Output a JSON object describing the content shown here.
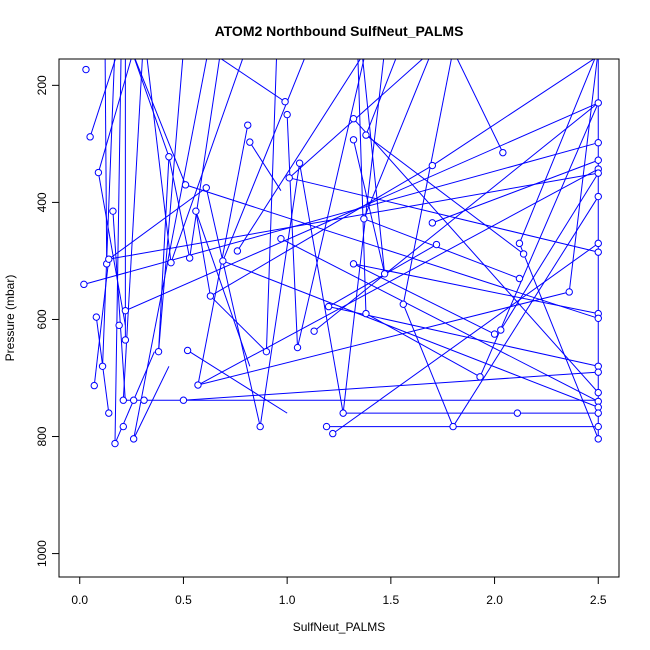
{
  "chart_data": {
    "type": "line",
    "title": "ATOM2 Northbound SulfNeut_PALMS",
    "xlabel": "SulfNeut_PALMS",
    "ylabel": "Pressure (mbar)",
    "xlim": [
      -0.1,
      2.6
    ],
    "ylim": [
      1040,
      155
    ],
    "y_reversed": true,
    "x_ticks": [
      0.0,
      0.5,
      1.0,
      1.5,
      2.0,
      2.5
    ],
    "x_tick_labels": [
      "0.0",
      "0.5",
      "1.0",
      "1.5",
      "2.0",
      "2.5"
    ],
    "y_ticks": [
      200,
      400,
      600,
      800,
      1000
    ],
    "y_tick_labels": [
      "200",
      "400",
      "600",
      "800",
      "1000"
    ],
    "grid": false,
    "legend": "none",
    "series": [
      {
        "color": "#0000ff",
        "marker": "open-circle",
        "points": [
          [
            0.03,
            173
          ],
          [
            0.12,
            40
          ],
          [
            0.05,
            288
          ],
          [
            0.25,
            70
          ],
          [
            0.09,
            349
          ],
          [
            0.13,
            505
          ],
          [
            0.16,
            415
          ],
          [
            0.14,
            497
          ],
          [
            0.02,
            540
          ],
          [
            0.08,
            596
          ],
          [
            0.11,
            680
          ],
          [
            0.07,
            713
          ],
          [
            0.14,
            760
          ],
          [
            0.2,
            140
          ],
          [
            0.22,
            585
          ],
          [
            0.22,
            635
          ],
          [
            0.19,
            610
          ],
          [
            0.21,
            738
          ],
          [
            0.17,
            812
          ],
          [
            0.26,
            738
          ],
          [
            0.21,
            783
          ],
          [
            0.26,
            804
          ],
          [
            0.31,
            738
          ],
          [
            0.38,
            655
          ],
          [
            0.43,
            322
          ],
          [
            0.44,
            503
          ],
          [
            0.5,
            738
          ],
          [
            0.51,
            370
          ],
          [
            0.53,
            495
          ],
          [
            0.52,
            653
          ],
          [
            0.56,
            415
          ],
          [
            0.57,
            712
          ],
          [
            0.61,
            375
          ],
          [
            0.63,
            560
          ],
          [
            0.69,
            500
          ],
          [
            0.76,
            483
          ],
          [
            0.81,
            268
          ],
          [
            0.82,
            297
          ],
          [
            0.87,
            783
          ],
          [
            0.9,
            655
          ],
          [
            0.97,
            462
          ],
          [
            0.99,
            228
          ],
          [
            1.0,
            250
          ],
          [
            1.01,
            358
          ],
          [
            1.06,
            333
          ],
          [
            1.05,
            648
          ],
          [
            1.13,
            620
          ],
          [
            1.19,
            783
          ],
          [
            1.2,
            578
          ],
          [
            1.22,
            795
          ],
          [
            1.27,
            760
          ],
          [
            1.32,
            257
          ],
          [
            1.32,
            505
          ],
          [
            1.32,
            293
          ],
          [
            1.37,
            428
          ],
          [
            1.38,
            285
          ],
          [
            1.38,
            590
          ],
          [
            1.47,
            522
          ],
          [
            1.56,
            574
          ],
          [
            1.7,
            337
          ],
          [
            1.7,
            435
          ],
          [
            1.72,
            472
          ],
          [
            1.8,
            783
          ],
          [
            1.93,
            698
          ],
          [
            2.0,
            625
          ],
          [
            2.03,
            618
          ],
          [
            2.04,
            315
          ],
          [
            2.11,
            760
          ],
          [
            2.12,
            470
          ],
          [
            2.12,
            530
          ],
          [
            2.14,
            488
          ],
          [
            2.36,
            553
          ],
          [
            2.5,
            230
          ],
          [
            2.5,
            298
          ],
          [
            2.5,
            328
          ],
          [
            2.5,
            343
          ],
          [
            2.5,
            350
          ],
          [
            2.5,
            390
          ],
          [
            2.5,
            470
          ],
          [
            2.5,
            485
          ],
          [
            2.5,
            590
          ],
          [
            2.5,
            598
          ],
          [
            2.5,
            680
          ],
          [
            2.5,
            690
          ],
          [
            2.5,
            725
          ],
          [
            2.5,
            740
          ],
          [
            2.5,
            750
          ],
          [
            2.5,
            760
          ],
          [
            2.5,
            783
          ],
          [
            2.5,
            804
          ]
        ],
        "segments": [
          [
            [
              0.09,
              349
            ],
            [
              0.26,
              140
            ]
          ],
          [
            [
              0.09,
              349
            ],
            [
              0.22,
              610
            ]
          ],
          [
            [
              0.05,
              288
            ],
            [
              0.25,
              70
            ]
          ],
          [
            [
              0.02,
              540
            ],
            [
              2.5,
              298
            ]
          ],
          [
            [
              0.14,
              497
            ],
            [
              2.5,
              350
            ]
          ],
          [
            [
              0.13,
              505
            ],
            [
              0.12,
              40
            ]
          ],
          [
            [
              0.16,
              415
            ],
            [
              0.22,
              740
            ]
          ],
          [
            [
              0.08,
              596
            ],
            [
              0.14,
              760
            ]
          ],
          [
            [
              0.11,
              680
            ],
            [
              0.18,
              40
            ]
          ],
          [
            [
              0.07,
              713
            ],
            [
              0.14,
              497
            ]
          ],
          [
            [
              0.14,
              497
            ],
            [
              0.61,
              375
            ]
          ],
          [
            [
              0.22,
              585
            ],
            [
              2.5,
              230
            ]
          ],
          [
            [
              0.22,
              635
            ],
            [
              0.22,
              40
            ]
          ],
          [
            [
              0.17,
              812
            ],
            [
              0.2,
              130
            ]
          ],
          [
            [
              0.21,
              738
            ],
            [
              0.32,
              40
            ]
          ],
          [
            [
              0.21,
              738
            ],
            [
              2.5,
              738
            ]
          ],
          [
            [
              0.26,
              804
            ],
            [
              0.43,
              680
            ]
          ],
          [
            [
              0.26,
              804
            ],
            [
              0.62,
              140
            ]
          ],
          [
            [
              0.17,
              812
            ],
            [
              0.36,
              655
            ]
          ],
          [
            [
              0.38,
              655
            ],
            [
              0.5,
              140
            ]
          ],
          [
            [
              0.38,
              655
            ],
            [
              0.43,
              322
            ]
          ],
          [
            [
              0.43,
              322
            ],
            [
              0.25,
              140
            ]
          ],
          [
            [
              0.43,
              322
            ],
            [
              0.53,
              495
            ]
          ],
          [
            [
              0.44,
              503
            ],
            [
              0.8,
              140
            ]
          ],
          [
            [
              0.44,
              503
            ],
            [
              0.32,
              140
            ]
          ],
          [
            [
              0.5,
              738
            ],
            [
              2.5,
              690
            ]
          ],
          [
            [
              0.51,
              370
            ],
            [
              0.25,
              140
            ]
          ],
          [
            [
              0.51,
              370
            ],
            [
              2.5,
              598
            ]
          ],
          [
            [
              0.53,
              495
            ],
            [
              0.68,
              140
            ]
          ],
          [
            [
              0.52,
              653
            ],
            [
              1.0,
              760
            ]
          ],
          [
            [
              0.56,
              415
            ],
            [
              0.82,
              680
            ]
          ],
          [
            [
              0.57,
              712
            ],
            [
              2.5,
              343
            ]
          ],
          [
            [
              0.61,
              375
            ],
            [
              0.87,
              783
            ]
          ],
          [
            [
              0.63,
              560
            ],
            [
              0.56,
              415
            ]
          ],
          [
            [
              0.63,
              560
            ],
            [
              1.7,
              337
            ]
          ],
          [
            [
              0.69,
              500
            ],
            [
              1.1,
              140
            ]
          ],
          [
            [
              0.69,
              500
            ],
            [
              2.5,
              750
            ]
          ],
          [
            [
              0.76,
              483
            ],
            [
              1.38,
              140
            ]
          ],
          [
            [
              0.81,
              268
            ],
            [
              0.57,
              712
            ]
          ],
          [
            [
              0.82,
              297
            ],
            [
              0.97,
              380
            ]
          ],
          [
            [
              0.87,
              783
            ],
            [
              1.06,
              333
            ]
          ],
          [
            [
              0.9,
              655
            ],
            [
              0.63,
              560
            ]
          ],
          [
            [
              0.9,
              655
            ],
            [
              0.95,
              140
            ]
          ],
          [
            [
              0.97,
              462
            ],
            [
              2.5,
              740
            ]
          ],
          [
            [
              0.99,
              228
            ],
            [
              0.62,
              140
            ]
          ],
          [
            [
              1.0,
              250
            ],
            [
              1.05,
              648
            ]
          ],
          [
            [
              1.01,
              358
            ],
            [
              1.7,
              140
            ]
          ],
          [
            [
              1.01,
              358
            ],
            [
              2.5,
              485
            ]
          ],
          [
            [
              1.06,
              333
            ],
            [
              1.27,
              760
            ]
          ],
          [
            [
              1.05,
              648
            ],
            [
              1.38,
              140
            ]
          ],
          [
            [
              1.13,
              620
            ],
            [
              2.5,
              230
            ]
          ],
          [
            [
              1.19,
              783
            ],
            [
              2.5,
              783
            ]
          ],
          [
            [
              1.2,
              578
            ],
            [
              2.5,
              680
            ]
          ],
          [
            [
              1.22,
              795
            ],
            [
              2.5,
              470
            ]
          ],
          [
            [
              1.27,
              760
            ],
            [
              1.47,
              140
            ]
          ],
          [
            [
              1.27,
              760
            ],
            [
              2.11,
              760
            ]
          ],
          [
            [
              1.32,
              257
            ],
            [
              2.5,
              725
            ]
          ],
          [
            [
              1.32,
              505
            ],
            [
              2.5,
              590
            ]
          ],
          [
            [
              1.32,
              293
            ],
            [
              1.47,
              522
            ]
          ],
          [
            [
              1.37,
              428
            ],
            [
              1.7,
              140
            ]
          ],
          [
            [
              1.38,
              285
            ],
            [
              1.54,
              140
            ]
          ],
          [
            [
              1.38,
              590
            ],
            [
              1.34,
              140
            ]
          ],
          [
            [
              1.47,
              522
            ],
            [
              1.36,
              140
            ]
          ],
          [
            [
              1.56,
              574
            ],
            [
              1.8,
              140
            ]
          ],
          [
            [
              1.7,
              337
            ],
            [
              2.5,
              150
            ]
          ],
          [
            [
              1.7,
              435
            ],
            [
              2.5,
              328
            ]
          ],
          [
            [
              1.72,
              472
            ],
            [
              1.2,
              578
            ]
          ],
          [
            [
              1.8,
              783
            ],
            [
              1.56,
              574
            ]
          ],
          [
            [
              1.8,
              783
            ],
            [
              2.5,
              390
            ]
          ],
          [
            [
              1.93,
              698
            ],
            [
              1.38,
              590
            ]
          ],
          [
            [
              1.93,
              698
            ],
            [
              2.5,
              230
            ]
          ],
          [
            [
              2.0,
              625
            ],
            [
              1.32,
              505
            ]
          ],
          [
            [
              2.03,
              618
            ],
            [
              2.5,
              350
            ]
          ],
          [
            [
              2.04,
              315
            ],
            [
              1.8,
              140
            ]
          ],
          [
            [
              2.12,
              470
            ],
            [
              2.5,
              140
            ]
          ],
          [
            [
              2.12,
              530
            ],
            [
              1.37,
              428
            ]
          ],
          [
            [
              2.14,
              488
            ],
            [
              1.38,
              285
            ]
          ],
          [
            [
              2.36,
              553
            ],
            [
              2.5,
              140
            ]
          ],
          [
            [
              2.36,
              553
            ],
            [
              0.57,
              712
            ]
          ],
          [
            [
              2.11,
              760
            ],
            [
              2.5,
              760
            ]
          ],
          [
            [
              2.12,
              470
            ],
            [
              2.5,
              804
            ]
          ],
          [
            [
              2.5,
              150
            ],
            [
              2.5,
              804
            ]
          ]
        ]
      }
    ]
  }
}
